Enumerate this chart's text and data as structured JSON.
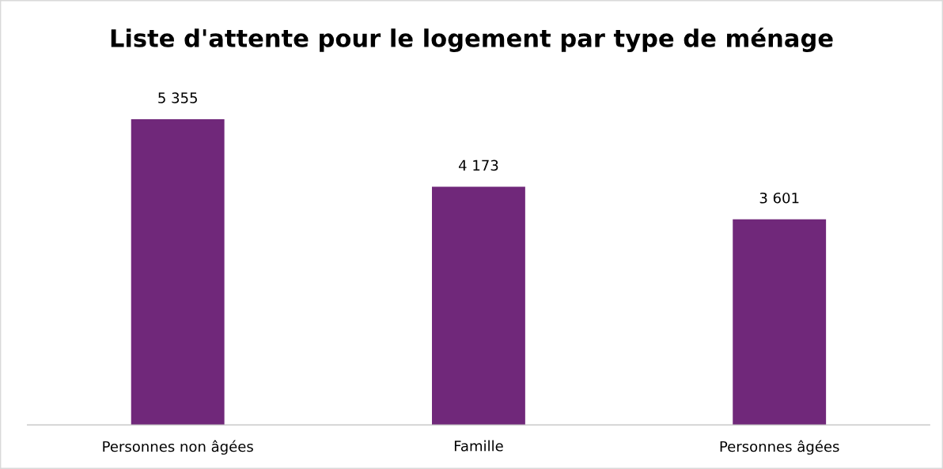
{
  "chart_data": {
    "type": "bar",
    "title": "Liste d'attente pour le logement par type de ménage",
    "categories": [
      "Personnes non âgées",
      "Famille",
      "Personnes âgées"
    ],
    "values": [
      5355,
      4173,
      3601
    ],
    "value_labels": [
      "5 355",
      "4 173",
      "3 601"
    ],
    "color": "#70287a",
    "grid": false,
    "legend": false
  }
}
